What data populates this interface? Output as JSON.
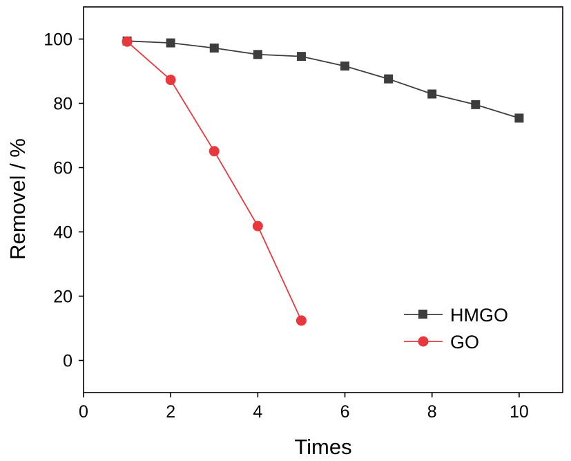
{
  "chart_data": {
    "type": "line",
    "title": "",
    "xlabel": "Times",
    "ylabel": "Removel / %",
    "xlim": [
      0,
      11
    ],
    "ylim": [
      -10,
      110
    ],
    "xticks": [
      0,
      2,
      4,
      6,
      8,
      10
    ],
    "yticks": [
      0,
      20,
      40,
      60,
      80,
      100
    ],
    "grid": false,
    "legend_position": "bottom-right",
    "series": [
      {
        "name": "HMGO",
        "color": "#3d3d3d",
        "marker": "square",
        "x": [
          1,
          2,
          3,
          4,
          5,
          6,
          7,
          8,
          9,
          10
        ],
        "y": [
          99.4,
          98.8,
          97.2,
          95.2,
          94.6,
          91.6,
          87.6,
          82.9,
          79.6,
          75.4
        ]
      },
      {
        "name": "GO",
        "color": "#e8383d",
        "marker": "circle",
        "x": [
          1,
          2,
          3,
          4,
          5
        ],
        "y": [
          99.2,
          87.3,
          65.1,
          41.8,
          12.4
        ]
      }
    ]
  }
}
